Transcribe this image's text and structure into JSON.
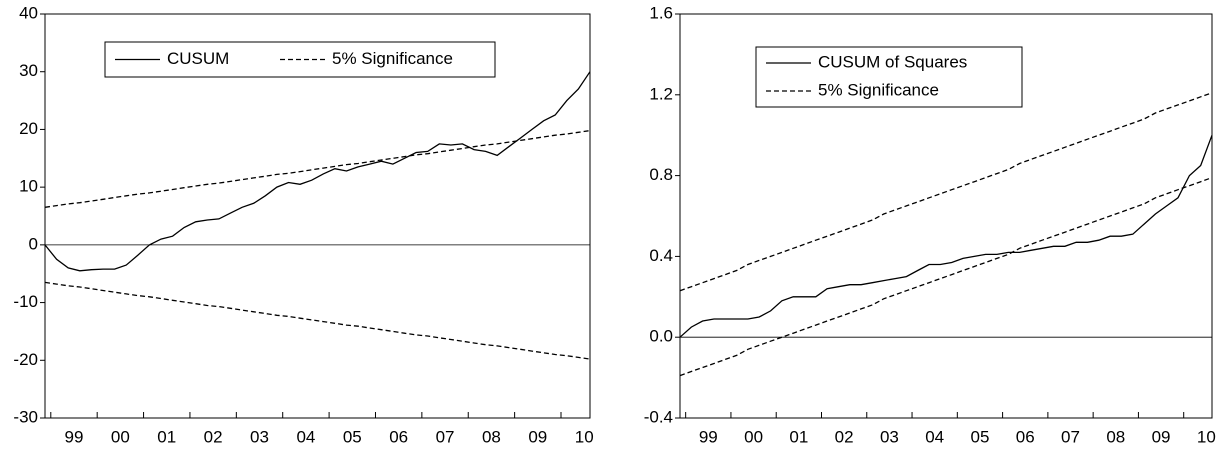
{
  "chart_data": [
    {
      "type": "line",
      "categories": [
        null,
        null,
        "99",
        null,
        null,
        null,
        "00",
        null,
        null,
        null,
        "01",
        null,
        null,
        null,
        "02",
        null,
        null,
        null,
        "03",
        null,
        null,
        null,
        "04",
        null,
        null,
        null,
        "05",
        null,
        null,
        null,
        "06",
        null,
        null,
        null,
        "07",
        null,
        null,
        null,
        "08",
        null,
        null,
        null,
        "09",
        null,
        null,
        null,
        "10",
        null
      ],
      "series": [
        {
          "name": "CUSUM",
          "color": "#000000",
          "dashed": false,
          "values": [
            0,
            -2.5,
            -4,
            -4.5,
            -4.3,
            -4.2,
            -4.2,
            -3.5,
            -1.8,
            0,
            1,
            1.5,
            3,
            4,
            4.3,
            4.5,
            5.5,
            6.5,
            7.2,
            8.5,
            10,
            10.8,
            10.5,
            11.2,
            12.3,
            13.2,
            12.8,
            13.5,
            14,
            14.5,
            14,
            15,
            16,
            16.2,
            17.5,
            17.3,
            17.5,
            16.5,
            16.2,
            15.5,
            17,
            18.5,
            20,
            21.5,
            22.5,
            25,
            27,
            30
          ]
        },
        {
          "name": "5% Significance",
          "color": "#000000",
          "dashed": true,
          "values": [
            6.5,
            6.8,
            7.1,
            7.3,
            7.6,
            7.9,
            8.2,
            8.5,
            8.8,
            9.0,
            9.3,
            9.6,
            9.9,
            10.2,
            10.5,
            10.7,
            11.0,
            11.3,
            11.6,
            11.9,
            12.2,
            12.4,
            12.7,
            13.0,
            13.3,
            13.6,
            13.9,
            14.1,
            14.4,
            14.7,
            15.0,
            15.3,
            15.6,
            15.8,
            16.1,
            16.4,
            16.7,
            17.0,
            17.3,
            17.5,
            17.8,
            18.1,
            18.4,
            18.7,
            19.0,
            19.2,
            19.5,
            19.8
          ]
        },
        {
          "color": "#000000",
          "dashed": true,
          "values": [
            -6.5,
            -6.8,
            -7.1,
            -7.3,
            -7.6,
            -7.9,
            -8.2,
            -8.5,
            -8.8,
            -9.0,
            -9.3,
            -9.6,
            -9.9,
            -10.2,
            -10.5,
            -10.7,
            -11.0,
            -11.3,
            -11.6,
            -11.9,
            -12.2,
            -12.4,
            -12.7,
            -13.0,
            -13.3,
            -13.6,
            -13.9,
            -14.1,
            -14.4,
            -14.7,
            -15.0,
            -15.3,
            -15.6,
            -15.8,
            -16.1,
            -16.4,
            -16.7,
            -17.0,
            -17.3,
            -17.5,
            -17.8,
            -18.1,
            -18.4,
            -18.7,
            -19.0,
            -19.2,
            -19.5,
            -19.8
          ]
        }
      ],
      "ylim": [
        -30,
        40
      ],
      "yticks": [
        -30,
        -20,
        -10,
        0,
        10,
        20,
        30,
        40
      ],
      "zero_line": true,
      "legend": "upper left"
    },
    {
      "type": "line",
      "categories": [
        null,
        null,
        "99",
        null,
        null,
        null,
        "00",
        null,
        null,
        null,
        "01",
        null,
        null,
        null,
        "02",
        null,
        null,
        null,
        "03",
        null,
        null,
        null,
        "04",
        null,
        null,
        null,
        "05",
        null,
        null,
        null,
        "06",
        null,
        null,
        null,
        "07",
        null,
        null,
        null,
        "08",
        null,
        null,
        null,
        "09",
        null,
        null,
        null,
        "10",
        null
      ],
      "series": [
        {
          "name": "CUSUM of Squares",
          "color": "#000000",
          "dashed": false,
          "values": [
            0,
            0.05,
            0.08,
            0.09,
            0.09,
            0.09,
            0.09,
            0.1,
            0.13,
            0.18,
            0.2,
            0.2,
            0.2,
            0.24,
            0.25,
            0.26,
            0.26,
            0.27,
            0.28,
            0.29,
            0.3,
            0.33,
            0.36,
            0.36,
            0.37,
            0.39,
            0.4,
            0.41,
            0.41,
            0.42,
            0.42,
            0.43,
            0.44,
            0.45,
            0.45,
            0.47,
            0.47,
            0.48,
            0.5,
            0.5,
            0.51,
            0.56,
            0.61,
            0.65,
            0.69,
            0.8,
            0.85,
            1.0
          ]
        },
        {
          "name": "5% Significance",
          "color": "#000000",
          "dashed": true,
          "values": [
            0.23,
            0.25,
            0.27,
            0.29,
            0.31,
            0.33,
            0.36,
            0.38,
            0.4,
            0.42,
            0.44,
            0.46,
            0.48,
            0.5,
            0.52,
            0.54,
            0.56,
            0.58,
            0.61,
            0.63,
            0.65,
            0.67,
            0.69,
            0.71,
            0.73,
            0.75,
            0.77,
            0.79,
            0.81,
            0.83,
            0.86,
            0.88,
            0.9,
            0.92,
            0.94,
            0.96,
            0.98,
            1.0,
            1.02,
            1.04,
            1.06,
            1.08,
            1.11,
            1.13,
            1.15,
            1.17,
            1.19,
            1.21
          ]
        },
        {
          "color": "#000000",
          "dashed": true,
          "values": [
            -0.19,
            -0.17,
            -0.15,
            -0.13,
            -0.11,
            -0.09,
            -0.06,
            -0.04,
            -0.02,
            0.0,
            0.02,
            0.04,
            0.06,
            0.08,
            0.1,
            0.12,
            0.14,
            0.16,
            0.19,
            0.21,
            0.23,
            0.25,
            0.27,
            0.29,
            0.31,
            0.33,
            0.35,
            0.37,
            0.39,
            0.41,
            0.44,
            0.46,
            0.48,
            0.5,
            0.52,
            0.54,
            0.56,
            0.58,
            0.6,
            0.62,
            0.64,
            0.66,
            0.69,
            0.71,
            0.73,
            0.75,
            0.77,
            0.79
          ]
        }
      ],
      "ylim": [
        -0.4,
        1.6
      ],
      "yticks": [
        -0.4,
        {
          "value": 0,
          "label": "0.0"
        },
        0.4,
        0.8,
        1.2,
        1.6
      ],
      "zero_line": true,
      "legend": "upper left"
    }
  ]
}
